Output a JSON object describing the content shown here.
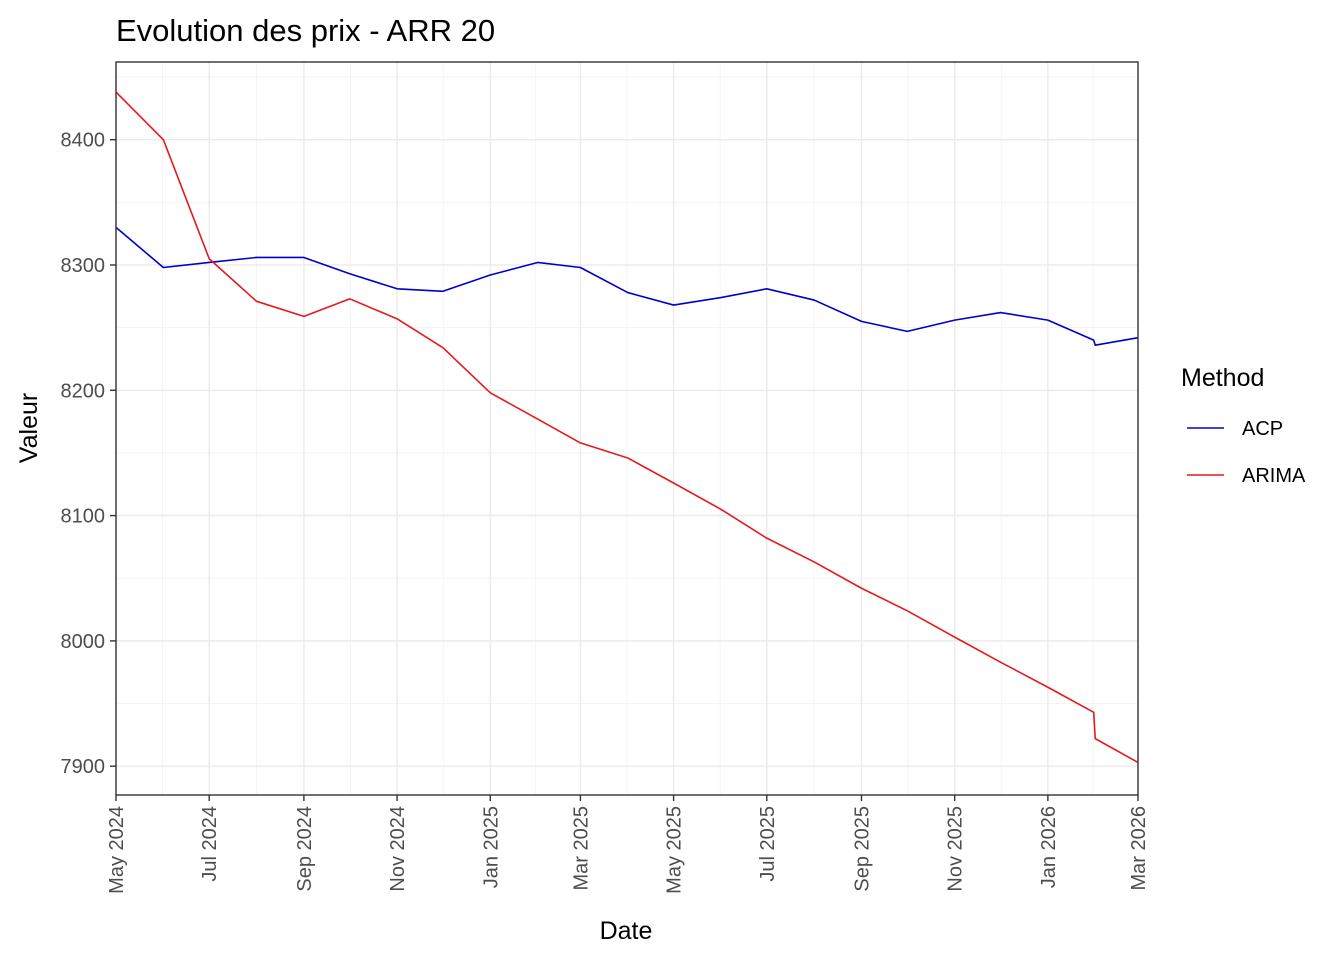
{
  "chart_data": {
    "type": "line",
    "title": "Evolution des prix - ARR 20",
    "xlabel": "Date",
    "ylabel": "Valeur",
    "xlim": [
      "2024-05-01",
      "2026-03-01"
    ],
    "ylim": [
      7877,
      8462
    ],
    "x_ticks": [
      "2024-05-01",
      "2024-07-01",
      "2024-09-01",
      "2024-11-01",
      "2025-01-01",
      "2025-03-01",
      "2025-05-01",
      "2025-07-01",
      "2025-09-01",
      "2025-11-01",
      "2026-01-01",
      "2026-03-01"
    ],
    "x_tick_labels": [
      "May 2024",
      "Jul 2024",
      "Sep 2024",
      "Nov 2024",
      "Jan 2025",
      "Mar 2025",
      "May 2025",
      "Jul 2025",
      "Sep 2025",
      "Nov 2025",
      "Jan 2026",
      "Mar 2026"
    ],
    "y_ticks": [
      7900,
      8000,
      8100,
      8200,
      8300,
      8400
    ],
    "y_tick_labels": [
      "7900",
      "8000",
      "8100",
      "8200",
      "8300",
      "8400"
    ],
    "grid": true,
    "legend": {
      "title": "Method",
      "placement": "right"
    },
    "series": [
      {
        "name": "ACP",
        "color": "#0000cd",
        "points": [
          [
            "2024-05-01",
            8330
          ],
          [
            "2024-06-01",
            8298
          ],
          [
            "2024-07-01",
            8302
          ],
          [
            "2024-08-01",
            8306
          ],
          [
            "2024-09-01",
            8306
          ],
          [
            "2024-10-01",
            8293
          ],
          [
            "2024-11-01",
            8281
          ],
          [
            "2024-12-01",
            8279
          ],
          [
            "2025-01-01",
            8292
          ],
          [
            "2025-02-01",
            8302
          ],
          [
            "2025-03-01",
            8298
          ],
          [
            "2025-04-01",
            8278
          ],
          [
            "2025-05-01",
            8268
          ],
          [
            "2025-06-01",
            8274
          ],
          [
            "2025-07-01",
            8281
          ],
          [
            "2025-08-01",
            8272
          ],
          [
            "2025-09-01",
            8255
          ],
          [
            "2025-10-01",
            8247
          ],
          [
            "2025-11-01",
            8256
          ],
          [
            "2025-12-01",
            8262
          ],
          [
            "2026-01-01",
            8256
          ],
          [
            "2026-01-31",
            8240
          ],
          [
            "2026-02-01",
            8236
          ],
          [
            "2026-03-01",
            8242
          ]
        ]
      },
      {
        "name": "ARIMA",
        "color": "#e41a1c",
        "points": [
          [
            "2024-05-01",
            8438
          ],
          [
            "2024-06-01",
            8400
          ],
          [
            "2024-07-01",
            8305
          ],
          [
            "2024-08-01",
            8271
          ],
          [
            "2024-09-01",
            8259
          ],
          [
            "2024-10-01",
            8273
          ],
          [
            "2024-11-01",
            8257
          ],
          [
            "2024-12-01",
            8234
          ],
          [
            "2025-01-01",
            8198
          ],
          [
            "2025-02-01",
            8177
          ],
          [
            "2025-03-01",
            8158
          ],
          [
            "2025-04-01",
            8146
          ],
          [
            "2025-05-01",
            8126
          ],
          [
            "2025-06-01",
            8105
          ],
          [
            "2025-07-01",
            8082
          ],
          [
            "2025-08-01",
            8063
          ],
          [
            "2025-09-01",
            8042
          ],
          [
            "2025-10-01",
            8024
          ],
          [
            "2025-11-01",
            8003
          ],
          [
            "2025-12-01",
            7983
          ],
          [
            "2026-01-01",
            7963
          ],
          [
            "2026-01-31",
            7943
          ],
          [
            "2026-02-01",
            7922
          ],
          [
            "2026-03-01",
            7903
          ]
        ]
      }
    ]
  }
}
